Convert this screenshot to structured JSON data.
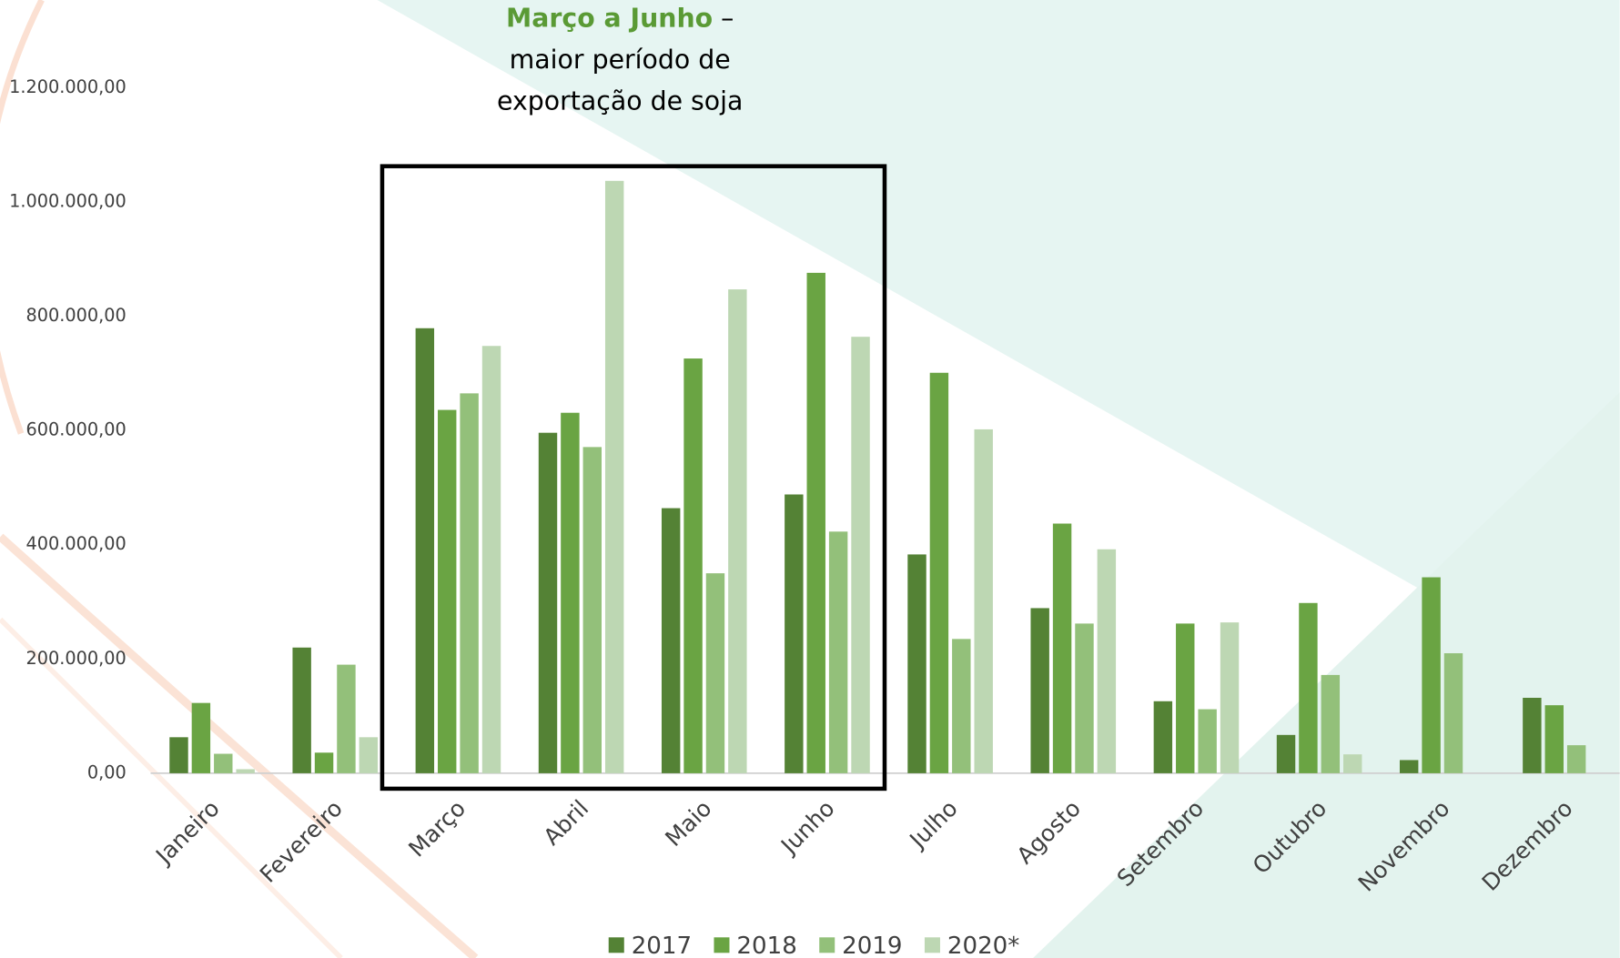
{
  "chart_data": {
    "type": "bar",
    "annotation": {
      "highlight": "Março a Junho",
      "suffix": " –",
      "lines": [
        "maior período de",
        "exportação de soja"
      ]
    },
    "categories": [
      "Janeiro",
      "Fevereiro",
      "Março",
      "Abril",
      "Maio",
      "Junho",
      "Julho",
      "Agosto",
      "Setembro",
      "Outubro",
      "Novembro",
      "Dezembro"
    ],
    "series": [
      {
        "name": "2017",
        "color": "#548235",
        "values": [
          63000,
          220000,
          779000,
          596000,
          464000,
          488000,
          383000,
          289000,
          126000,
          67000,
          23000,
          132000
        ]
      },
      {
        "name": "2018",
        "color": "#6aa443",
        "values": [
          123000,
          36000,
          636000,
          631000,
          726000,
          876000,
          701000,
          437000,
          262000,
          298000,
          343000,
          119000
        ]
      },
      {
        "name": "2019",
        "color": "#93c07a",
        "values": [
          34000,
          190000,
          665000,
          571000,
          350000,
          423000,
          235000,
          262000,
          112000,
          172000,
          210000,
          49000
        ]
      },
      {
        "name": "2020*",
        "color": "#bdd7b3",
        "values": [
          7000,
          63000,
          748000,
          1037000,
          847000,
          764000,
          602000,
          392000,
          264000,
          33000,
          null,
          null
        ]
      }
    ],
    "ylim": [
      0,
      1200000
    ],
    "yticks": [
      {
        "value": 0,
        "label": "0,00"
      },
      {
        "value": 200000,
        "label": "200.000,00"
      },
      {
        "value": 400000,
        "label": "400.000,00"
      },
      {
        "value": 600000,
        "label": "600.000,00"
      },
      {
        "value": 800000,
        "label": "800.000,00"
      },
      {
        "value": 1000000,
        "label": "1.000.000,00"
      },
      {
        "value": 1200000,
        "label": "1.200.000,00"
      }
    ],
    "legend": "bottom"
  }
}
